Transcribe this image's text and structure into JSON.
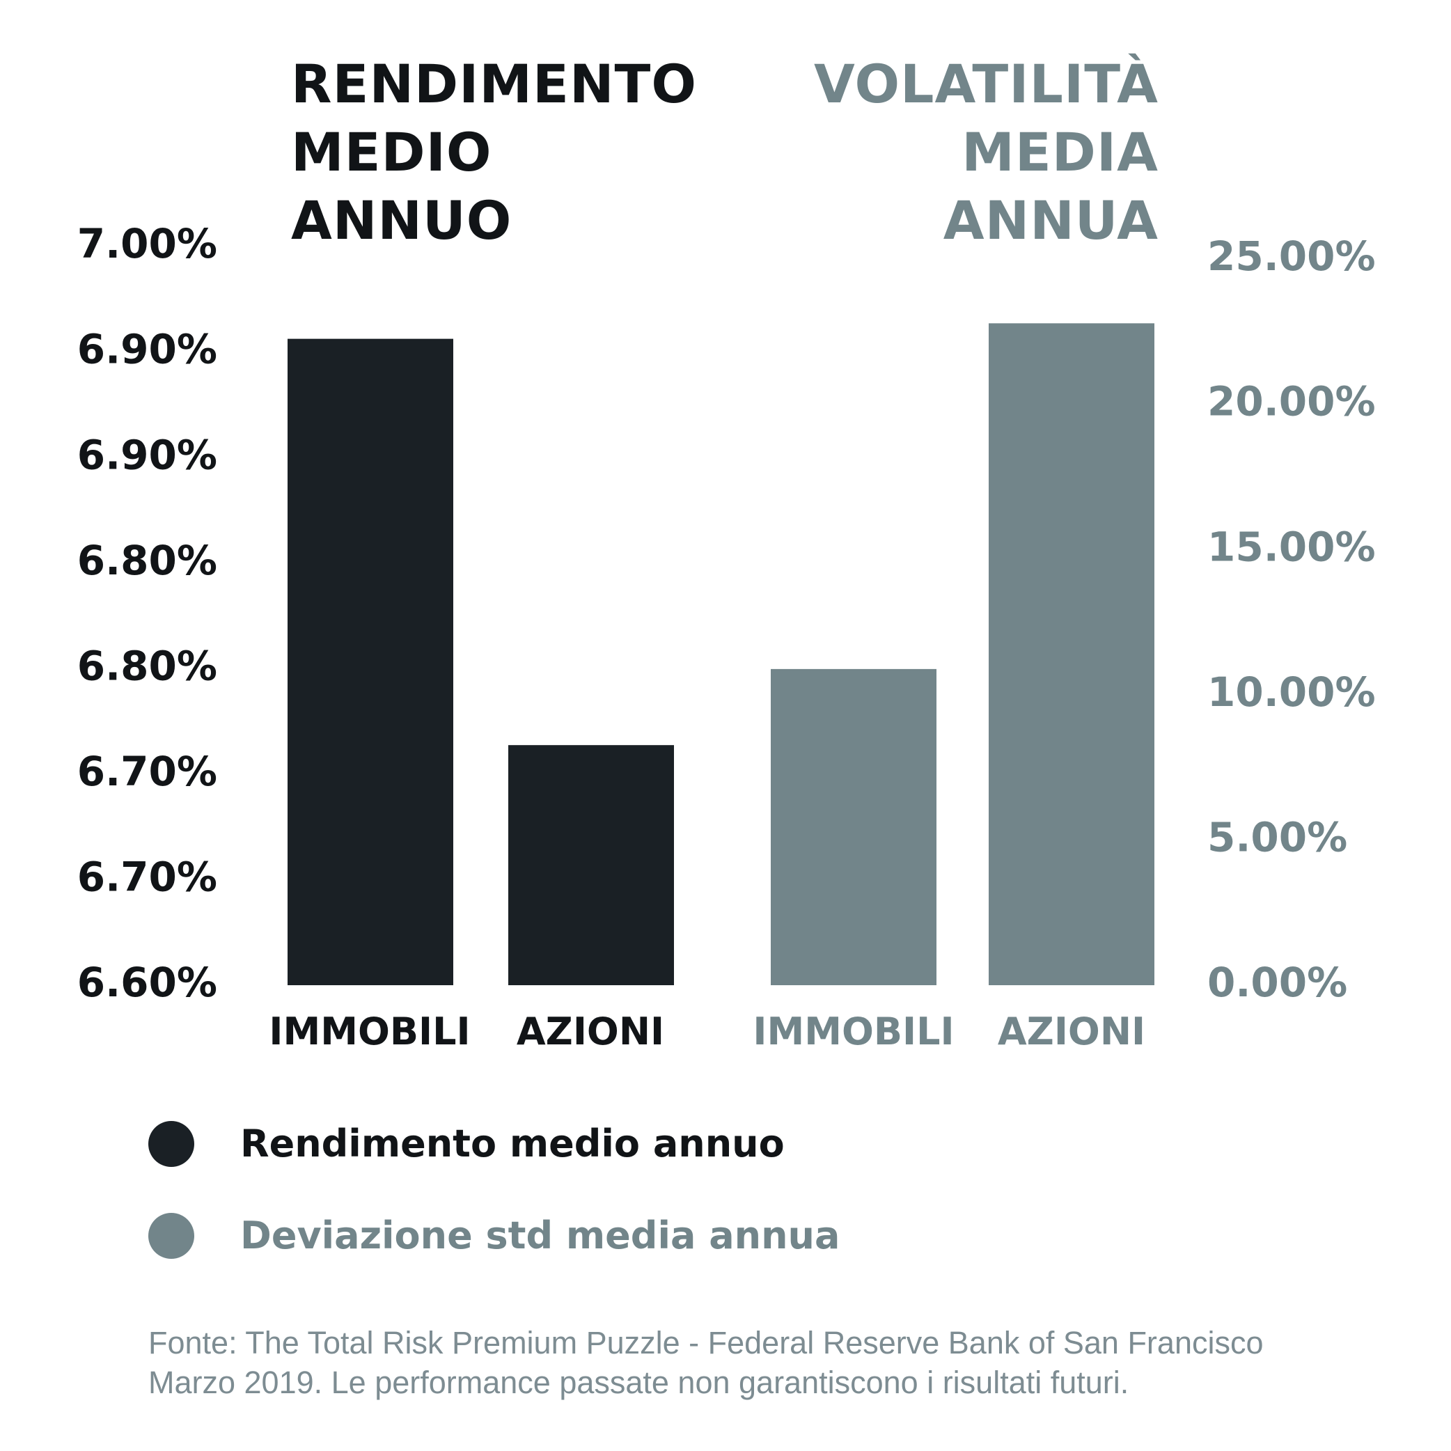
{
  "colors": {
    "return": "#1a2025",
    "volatility": "#72858a",
    "background": "#ffffff"
  },
  "titles": {
    "left": [
      "RENDIMENTO",
      "MEDIO",
      "ANNUO"
    ],
    "right": [
      "VOLATILITÀ",
      "MEDIA",
      "ANNUA"
    ]
  },
  "chart_data": [
    {
      "type": "bar",
      "title": "RENDIMENTO MEDIO ANNUO",
      "categories": [
        "IMMOBILI",
        "AZIONI"
      ],
      "series": [
        {
          "name": "Rendimento medio annuo",
          "values": [
            6.95,
            6.73
          ]
        }
      ],
      "ylim": [
        6.6,
        7.0
      ],
      "yticks": [
        "6.60%",
        "6.70%",
        "6.70%",
        "6.80%",
        "6.80%",
        "6.90%",
        "6.90%",
        "7.00%"
      ],
      "axis_side": "left",
      "grid": false
    },
    {
      "type": "bar",
      "title": "VOLATILITÀ MEDIA ANNUA",
      "categories": [
        "IMMOBILI",
        "AZIONI"
      ],
      "series": [
        {
          "name": "Deviazione std media annua",
          "values": [
            10.7,
            22.4
          ]
        }
      ],
      "ylim": [
        0,
        25
      ],
      "yticks": [
        "0.00%",
        "5.00%",
        "10.00%",
        "15.00%",
        "20.00%",
        "25.00%"
      ],
      "axis_side": "right",
      "grid": false
    }
  ],
  "legend": [
    {
      "label": "Rendimento medio annuo",
      "color": "#1a2025"
    },
    {
      "label": "Deviazione std media annua",
      "color": "#72858a"
    }
  ],
  "source": {
    "line1": "Fonte: The Total Risk Premium Puzzle - Federal Reserve Bank of San Francisco",
    "line2": "Marzo 2019. Le performance passate non garantiscono i risultati futuri."
  }
}
